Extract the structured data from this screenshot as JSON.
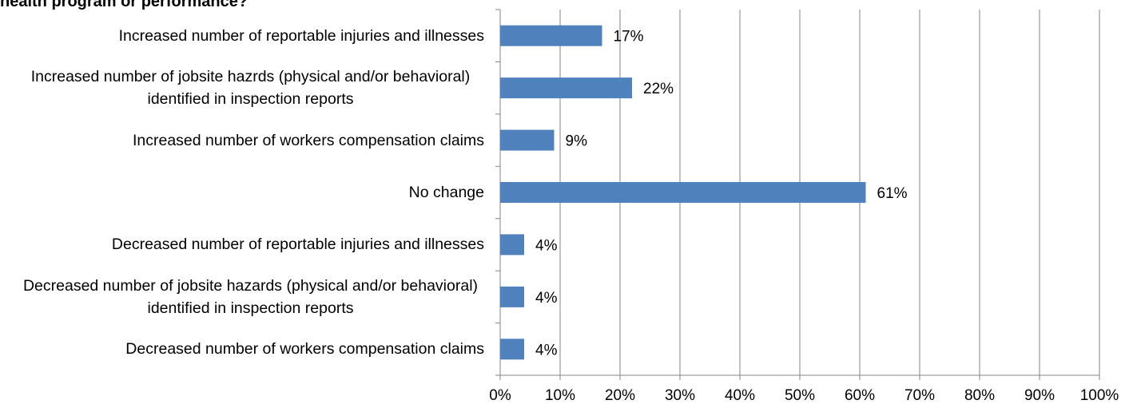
{
  "chart_data": {
    "type": "bar",
    "title": "health program or performance?",
    "categories": [
      "Increased number of reportable injuries and illnesses",
      "Increased number of jobsite hazrds (physical and/or behavioral) identified in inspection reports",
      "Increased number of workers compensation claims",
      "No change",
      "Decreased number of reportable injuries and illnesses",
      "Decreased number of jobsite hazards (physical and/or behavioral) identified in inspection reports",
      "Decreased number of workers compensation claims"
    ],
    "values": [
      17,
      22,
      9,
      61,
      4,
      4,
      4
    ],
    "value_labels": [
      "17%",
      "22%",
      "9%",
      "61%",
      "4%",
      "4%",
      "4%"
    ],
    "color": "#4f81bd",
    "xlim": [
      0,
      100
    ],
    "xticks": [
      {
        "value": 0,
        "label": "0%"
      },
      {
        "value": 10,
        "label": "10%"
      },
      {
        "value": 20,
        "label": "20%"
      },
      {
        "value": 30,
        "label": "30%"
      },
      {
        "value": 40,
        "label": "40%"
      },
      {
        "value": 50,
        "label": "50%"
      },
      {
        "value": 60,
        "label": "60%"
      },
      {
        "value": 70,
        "label": "70%"
      },
      {
        "value": 80,
        "label": "80%"
      },
      {
        "value": 90,
        "label": "90%"
      },
      {
        "value": 100,
        "label": "100%"
      }
    ],
    "grid": true
  }
}
